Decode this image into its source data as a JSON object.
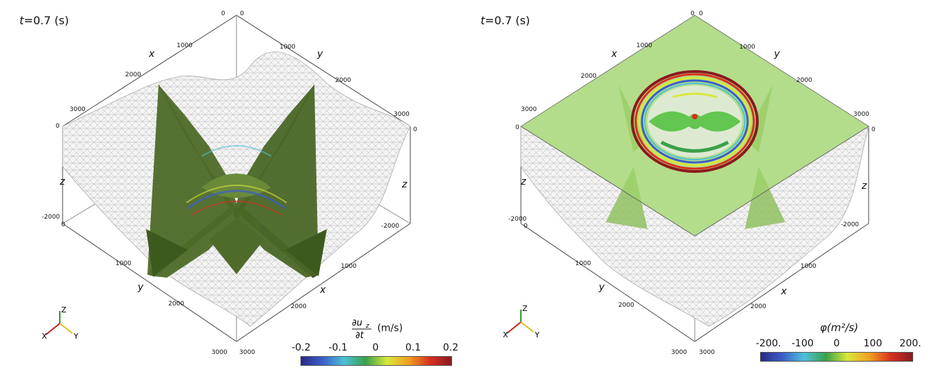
{
  "panels": [
    {
      "time_label": {
        "prefix": "t",
        "text": "=0.7 (s)"
      },
      "axes": {
        "x_label": "x",
        "y_label": "y",
        "z_label": "z",
        "top_ticks_x": [
          "0",
          "1000",
          "2000",
          "3000"
        ],
        "top_ticks_y": [
          "0",
          "1000",
          "2000",
          "3000"
        ],
        "left_ticks": [
          "0",
          "-2000"
        ],
        "right_ticks": [
          "0",
          "-2000"
        ],
        "bottom_ticks_y": [
          "0",
          "1000",
          "2000",
          "3000"
        ],
        "bottom_ticks_x": [
          "1000",
          "2000",
          "3000"
        ]
      },
      "orientation_axes": {
        "z": "Z",
        "x": "X",
        "y": "Y"
      },
      "colorbar": {
        "title_unit": "(m/s)",
        "ticks": [
          "-0.2",
          "-0.1",
          "0",
          "0.1",
          "0.2"
        ]
      }
    },
    {
      "time_label": {
        "prefix": "t",
        "text": "=0.7 (s)"
      },
      "axes": {
        "x_label": "x",
        "y_label": "y",
        "z_label": "z",
        "top_ticks_x": [
          "0",
          "1000",
          "2000",
          "3000"
        ],
        "top_ticks_y": [
          "0",
          "1000",
          "2000",
          "3000"
        ],
        "left_ticks": [
          "0",
          "-2000"
        ],
        "right_ticks": [
          "0",
          "-2000"
        ],
        "bottom_ticks_y": [
          "0",
          "1000",
          "2000",
          "3000"
        ],
        "bottom_ticks_x": [
          "1000",
          "2000",
          "3000"
        ]
      },
      "orientation_axes": {
        "z": "Z",
        "x": "X",
        "y": "Y"
      },
      "colorbar": {
        "title_symbol": "φ",
        "title_unit": "(m²/s)",
        "ticks": [
          "-200.",
          "-100",
          "0",
          "100",
          "200."
        ]
      }
    }
  ],
  "colors": {
    "mesh": "#9a9a9a",
    "slice_green": "#4e6b2a",
    "plane_green": "#9ed46a",
    "colormap": [
      "#2a2a86",
      "#3a5fc8",
      "#4ec0d8",
      "#3aa04a",
      "#d8e83a",
      "#f0a020",
      "#d83020",
      "#8a1a20"
    ]
  }
}
